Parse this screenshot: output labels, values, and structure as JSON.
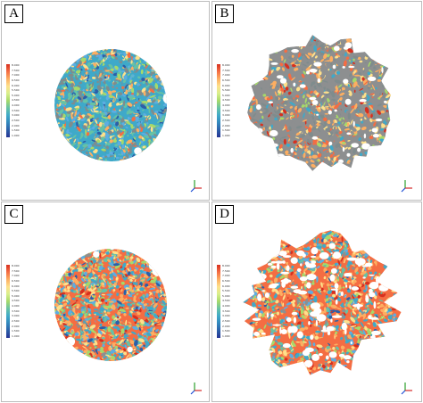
{
  "panels": [
    {
      "id": "a",
      "label": "A",
      "shape": "disc",
      "palette": "blue-grey"
    },
    {
      "id": "b",
      "label": "B",
      "shape": "irregular",
      "palette": "grey-orange"
    },
    {
      "id": "c",
      "label": "C",
      "shape": "disc",
      "palette": "orange-blue"
    },
    {
      "id": "d",
      "label": "D",
      "shape": "fragmented",
      "palette": "orange-blue"
    }
  ],
  "colorbar": {
    "ticks": [
      "8.000",
      "7.500",
      "7.000",
      "6.500",
      "6.000",
      "5.500",
      "5.000",
      "4.500",
      "4.000",
      "3.500",
      "3.000",
      "2.500",
      "2.000",
      "1.500",
      "1.000"
    ],
    "colors": [
      "#d7301f",
      "#f46d43",
      "#fdae61",
      "#fee08b",
      "#d9ef8b",
      "#a6d96a",
      "#66c2a5",
      "#3fa9c9",
      "#3288bd",
      "#2c5fa8",
      "#253494"
    ]
  },
  "axis_icon": {
    "x_color": "#d62728",
    "y_color": "#2ca02c",
    "z_color": "#1f4fd6"
  }
}
